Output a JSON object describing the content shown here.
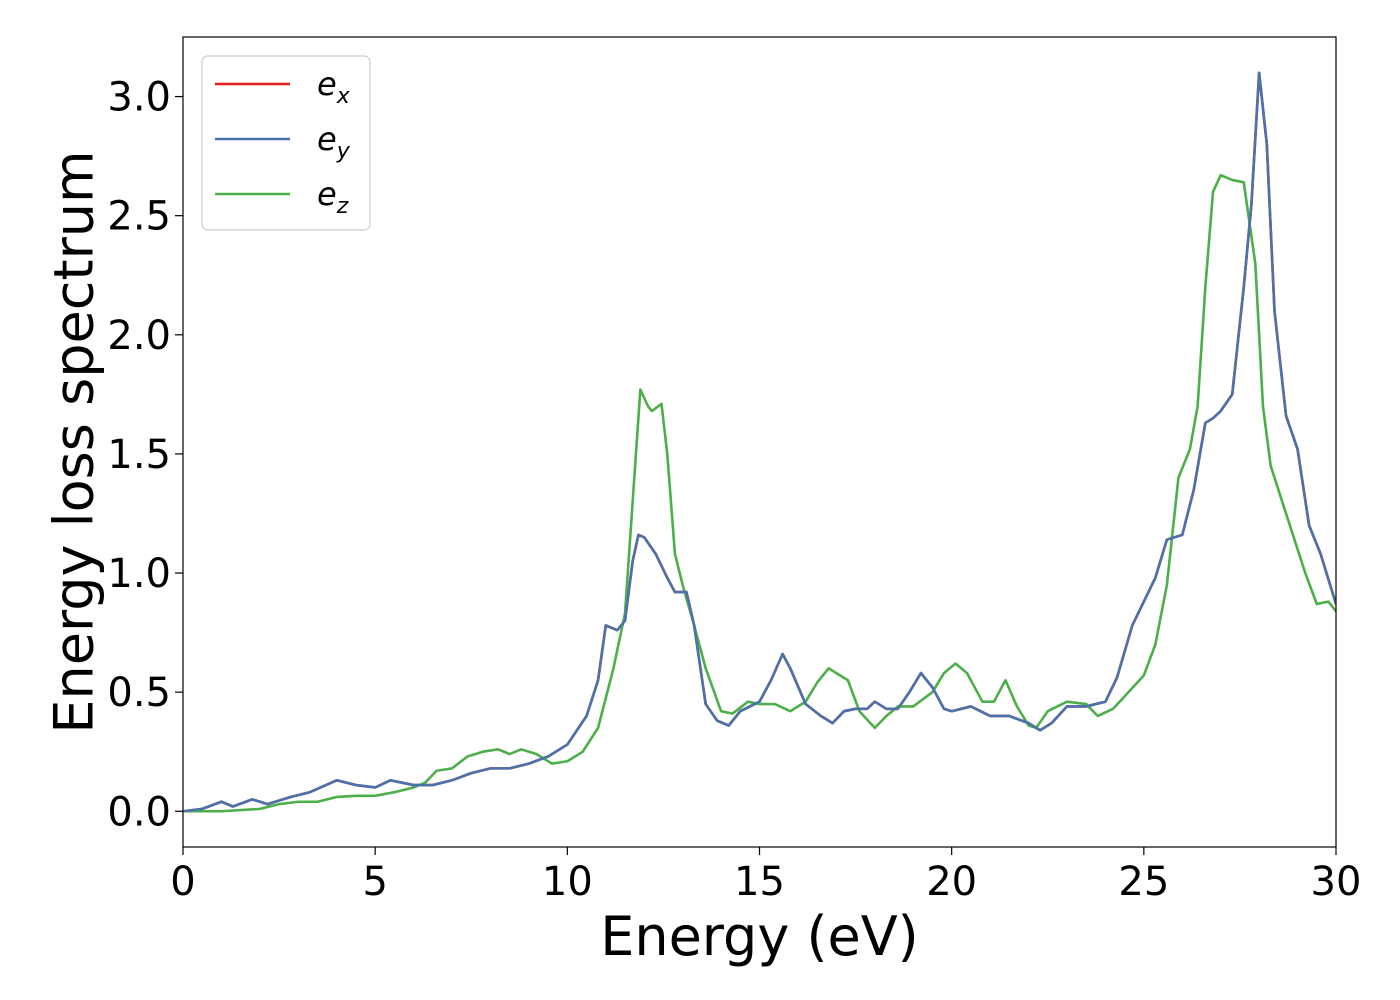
{
  "chart_data": {
    "type": "line",
    "xlabel": "Energy (eV)",
    "ylabel": "Energy loss spectrum",
    "xlim": [
      0,
      30
    ],
    "ylim": [
      -0.15,
      3.25
    ],
    "xticks": [
      0,
      5,
      10,
      15,
      20,
      25,
      30
    ],
    "xtick_labels": [
      "0",
      "5",
      "10",
      "15",
      "20",
      "25",
      "30"
    ],
    "yticks": [
      0.0,
      0.5,
      1.0,
      1.5,
      2.0,
      2.5,
      3.0
    ],
    "ytick_labels": [
      "0.0",
      "0.5",
      "1.0",
      "1.5",
      "2.0",
      "2.5",
      "3.0"
    ],
    "grid": false,
    "legend_position": "top-left",
    "series": [
      {
        "name": "e",
        "sub": "x",
        "color": "#e41a1c",
        "points": [
          [
            0,
            0.0
          ],
          [
            0.5,
            0.01
          ],
          [
            1.0,
            0.04
          ],
          [
            1.3,
            0.02
          ],
          [
            1.8,
            0.05
          ],
          [
            2.2,
            0.03
          ],
          [
            2.8,
            0.06
          ],
          [
            3.3,
            0.08
          ],
          [
            4.0,
            0.13
          ],
          [
            4.5,
            0.11
          ],
          [
            5.0,
            0.1
          ],
          [
            5.4,
            0.13
          ],
          [
            6.0,
            0.11
          ],
          [
            6.5,
            0.11
          ],
          [
            7.0,
            0.13
          ],
          [
            7.5,
            0.16
          ],
          [
            8.0,
            0.18
          ],
          [
            8.5,
            0.18
          ],
          [
            9.0,
            0.2
          ],
          [
            9.5,
            0.23
          ],
          [
            10.0,
            0.28
          ],
          [
            10.5,
            0.4
          ],
          [
            10.8,
            0.55
          ],
          [
            11.0,
            0.78
          ],
          [
            11.3,
            0.76
          ],
          [
            11.5,
            0.8
          ],
          [
            11.7,
            1.05
          ],
          [
            11.85,
            1.16
          ],
          [
            12.0,
            1.15
          ],
          [
            12.3,
            1.08
          ],
          [
            12.6,
            0.98
          ],
          [
            12.8,
            0.92
          ],
          [
            13.1,
            0.92
          ],
          [
            13.3,
            0.78
          ],
          [
            13.6,
            0.45
          ],
          [
            13.9,
            0.38
          ],
          [
            14.2,
            0.36
          ],
          [
            14.5,
            0.42
          ],
          [
            15.0,
            0.46
          ],
          [
            15.3,
            0.55
          ],
          [
            15.6,
            0.66
          ],
          [
            15.8,
            0.6
          ],
          [
            16.2,
            0.45
          ],
          [
            16.6,
            0.4
          ],
          [
            16.9,
            0.37
          ],
          [
            17.2,
            0.42
          ],
          [
            17.5,
            0.43
          ],
          [
            17.8,
            0.43
          ],
          [
            18.0,
            0.46
          ],
          [
            18.3,
            0.43
          ],
          [
            18.6,
            0.43
          ],
          [
            18.9,
            0.5
          ],
          [
            19.2,
            0.58
          ],
          [
            19.5,
            0.52
          ],
          [
            19.8,
            0.43
          ],
          [
            20.0,
            0.42
          ],
          [
            20.5,
            0.44
          ],
          [
            21.0,
            0.4
          ],
          [
            21.5,
            0.4
          ],
          [
            22.0,
            0.37
          ],
          [
            22.3,
            0.34
          ],
          [
            22.6,
            0.37
          ],
          [
            23.0,
            0.44
          ],
          [
            23.5,
            0.44
          ],
          [
            24.0,
            0.46
          ],
          [
            24.3,
            0.56
          ],
          [
            24.7,
            0.78
          ],
          [
            25.0,
            0.88
          ],
          [
            25.3,
            0.98
          ],
          [
            25.6,
            1.14
          ],
          [
            26.0,
            1.16
          ],
          [
            26.3,
            1.35
          ],
          [
            26.6,
            1.63
          ],
          [
            26.8,
            1.65
          ],
          [
            27.0,
            1.68
          ],
          [
            27.3,
            1.75
          ],
          [
            27.6,
            2.2
          ],
          [
            27.8,
            2.55
          ],
          [
            28.0,
            3.1
          ],
          [
            28.2,
            2.8
          ],
          [
            28.4,
            2.1
          ],
          [
            28.7,
            1.66
          ],
          [
            29.0,
            1.52
          ],
          [
            29.3,
            1.2
          ],
          [
            29.6,
            1.08
          ],
          [
            30.0,
            0.87
          ]
        ]
      },
      {
        "name": "e",
        "sub": "y",
        "color": "#4a72ab",
        "points": [
          [
            0,
            0.0
          ],
          [
            0.5,
            0.01
          ],
          [
            1.0,
            0.04
          ],
          [
            1.3,
            0.02
          ],
          [
            1.8,
            0.05
          ],
          [
            2.2,
            0.03
          ],
          [
            2.8,
            0.06
          ],
          [
            3.3,
            0.08
          ],
          [
            4.0,
            0.13
          ],
          [
            4.5,
            0.11
          ],
          [
            5.0,
            0.1
          ],
          [
            5.4,
            0.13
          ],
          [
            6.0,
            0.11
          ],
          [
            6.5,
            0.11
          ],
          [
            7.0,
            0.13
          ],
          [
            7.5,
            0.16
          ],
          [
            8.0,
            0.18
          ],
          [
            8.5,
            0.18
          ],
          [
            9.0,
            0.2
          ],
          [
            9.5,
            0.23
          ],
          [
            10.0,
            0.28
          ],
          [
            10.5,
            0.4
          ],
          [
            10.8,
            0.55
          ],
          [
            11.0,
            0.78
          ],
          [
            11.3,
            0.76
          ],
          [
            11.5,
            0.8
          ],
          [
            11.7,
            1.05
          ],
          [
            11.85,
            1.16
          ],
          [
            12.0,
            1.15
          ],
          [
            12.3,
            1.08
          ],
          [
            12.6,
            0.98
          ],
          [
            12.8,
            0.92
          ],
          [
            13.1,
            0.92
          ],
          [
            13.3,
            0.78
          ],
          [
            13.6,
            0.45
          ],
          [
            13.9,
            0.38
          ],
          [
            14.2,
            0.36
          ],
          [
            14.5,
            0.42
          ],
          [
            15.0,
            0.46
          ],
          [
            15.3,
            0.55
          ],
          [
            15.6,
            0.66
          ],
          [
            15.8,
            0.6
          ],
          [
            16.2,
            0.45
          ],
          [
            16.6,
            0.4
          ],
          [
            16.9,
            0.37
          ],
          [
            17.2,
            0.42
          ],
          [
            17.5,
            0.43
          ],
          [
            17.8,
            0.43
          ],
          [
            18.0,
            0.46
          ],
          [
            18.3,
            0.43
          ],
          [
            18.6,
            0.43
          ],
          [
            18.9,
            0.5
          ],
          [
            19.2,
            0.58
          ],
          [
            19.5,
            0.52
          ],
          [
            19.8,
            0.43
          ],
          [
            20.0,
            0.42
          ],
          [
            20.5,
            0.44
          ],
          [
            21.0,
            0.4
          ],
          [
            21.5,
            0.4
          ],
          [
            22.0,
            0.37
          ],
          [
            22.3,
            0.34
          ],
          [
            22.6,
            0.37
          ],
          [
            23.0,
            0.44
          ],
          [
            23.5,
            0.44
          ],
          [
            24.0,
            0.46
          ],
          [
            24.3,
            0.56
          ],
          [
            24.7,
            0.78
          ],
          [
            25.0,
            0.88
          ],
          [
            25.3,
            0.98
          ],
          [
            25.6,
            1.14
          ],
          [
            26.0,
            1.16
          ],
          [
            26.3,
            1.35
          ],
          [
            26.6,
            1.63
          ],
          [
            26.8,
            1.65
          ],
          [
            27.0,
            1.68
          ],
          [
            27.3,
            1.75
          ],
          [
            27.6,
            2.2
          ],
          [
            27.8,
            2.55
          ],
          [
            28.0,
            3.1
          ],
          [
            28.2,
            2.8
          ],
          [
            28.4,
            2.1
          ],
          [
            28.7,
            1.66
          ],
          [
            29.0,
            1.52
          ],
          [
            29.3,
            1.2
          ],
          [
            29.6,
            1.08
          ],
          [
            30.0,
            0.87
          ]
        ]
      },
      {
        "name": "e",
        "sub": "z",
        "color": "#4daf4a",
        "points": [
          [
            0,
            0.0
          ],
          [
            1.0,
            0.0
          ],
          [
            2.0,
            0.01
          ],
          [
            2.5,
            0.03
          ],
          [
            3.0,
            0.04
          ],
          [
            3.5,
            0.04
          ],
          [
            4.0,
            0.06
          ],
          [
            4.5,
            0.065
          ],
          [
            5.0,
            0.065
          ],
          [
            5.5,
            0.08
          ],
          [
            6.0,
            0.1
          ],
          [
            6.3,
            0.12
          ],
          [
            6.6,
            0.17
          ],
          [
            7.0,
            0.18
          ],
          [
            7.4,
            0.23
          ],
          [
            7.8,
            0.25
          ],
          [
            8.2,
            0.26
          ],
          [
            8.5,
            0.24
          ],
          [
            8.8,
            0.26
          ],
          [
            9.2,
            0.24
          ],
          [
            9.6,
            0.2
          ],
          [
            10.0,
            0.21
          ],
          [
            10.4,
            0.25
          ],
          [
            10.8,
            0.35
          ],
          [
            11.2,
            0.6
          ],
          [
            11.5,
            0.83
          ],
          [
            11.7,
            1.3
          ],
          [
            11.9,
            1.77
          ],
          [
            12.1,
            1.7
          ],
          [
            12.2,
            1.68
          ],
          [
            12.45,
            1.71
          ],
          [
            12.6,
            1.5
          ],
          [
            12.8,
            1.08
          ],
          [
            13.0,
            0.95
          ],
          [
            13.3,
            0.78
          ],
          [
            13.6,
            0.6
          ],
          [
            14.0,
            0.42
          ],
          [
            14.3,
            0.41
          ],
          [
            14.7,
            0.46
          ],
          [
            15.0,
            0.45
          ],
          [
            15.4,
            0.45
          ],
          [
            15.8,
            0.42
          ],
          [
            16.2,
            0.46
          ],
          [
            16.5,
            0.54
          ],
          [
            16.8,
            0.6
          ],
          [
            17.1,
            0.57
          ],
          [
            17.3,
            0.55
          ],
          [
            17.6,
            0.42
          ],
          [
            18.0,
            0.35
          ],
          [
            18.3,
            0.4
          ],
          [
            18.6,
            0.44
          ],
          [
            19.0,
            0.44
          ],
          [
            19.5,
            0.5
          ],
          [
            19.8,
            0.58
          ],
          [
            20.1,
            0.62
          ],
          [
            20.4,
            0.58
          ],
          [
            20.8,
            0.46
          ],
          [
            21.1,
            0.46
          ],
          [
            21.4,
            0.55
          ],
          [
            21.7,
            0.44
          ],
          [
            22.0,
            0.36
          ],
          [
            22.2,
            0.35
          ],
          [
            22.5,
            0.42
          ],
          [
            23.0,
            0.46
          ],
          [
            23.5,
            0.45
          ],
          [
            23.8,
            0.4
          ],
          [
            24.2,
            0.43
          ],
          [
            24.6,
            0.5
          ],
          [
            25.0,
            0.57
          ],
          [
            25.3,
            0.7
          ],
          [
            25.6,
            0.95
          ],
          [
            25.9,
            1.4
          ],
          [
            26.2,
            1.52
          ],
          [
            26.4,
            1.7
          ],
          [
            26.6,
            2.2
          ],
          [
            26.8,
            2.6
          ],
          [
            27.0,
            2.67
          ],
          [
            27.3,
            2.65
          ],
          [
            27.6,
            2.64
          ],
          [
            27.9,
            2.3
          ],
          [
            28.1,
            1.7
          ],
          [
            28.3,
            1.45
          ],
          [
            28.6,
            1.3
          ],
          [
            28.9,
            1.15
          ],
          [
            29.2,
            1.0
          ],
          [
            29.5,
            0.87
          ],
          [
            29.8,
            0.88
          ],
          [
            30.0,
            0.84
          ]
        ]
      }
    ]
  }
}
